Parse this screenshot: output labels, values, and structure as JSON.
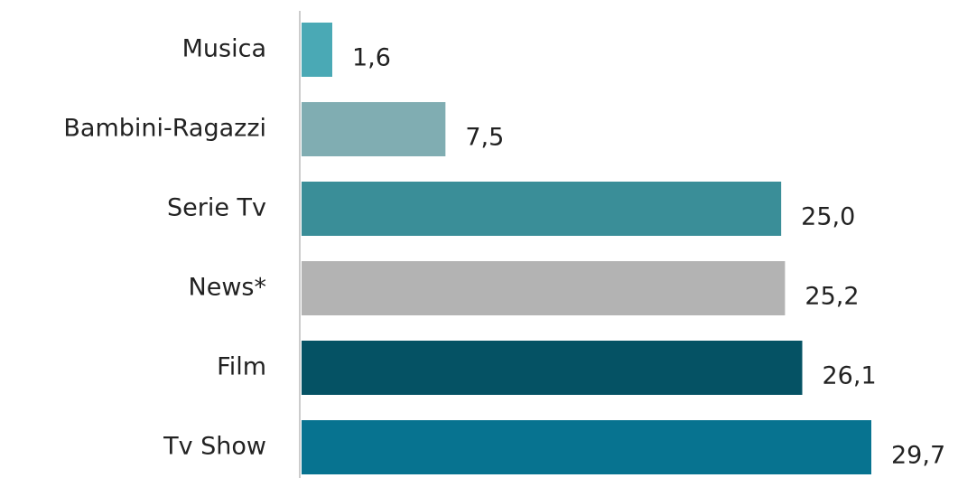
{
  "chart_data": {
    "type": "bar",
    "orientation": "horizontal",
    "categories": [
      "Musica",
      "Bambini-Ragazzi",
      "Serie Tv",
      "News*",
      "Film",
      "Tv Show"
    ],
    "values": [
      1.6,
      7.5,
      25.0,
      25.2,
      26.1,
      29.7
    ],
    "value_labels": [
      "1,6",
      "7,5",
      "25,0",
      "25,2",
      "26,1",
      "29,7"
    ],
    "colors": [
      "#4aa9b5",
      "#80adb2",
      "#3a8e98",
      "#b3b3b3",
      "#055264",
      "#077390"
    ]
  }
}
